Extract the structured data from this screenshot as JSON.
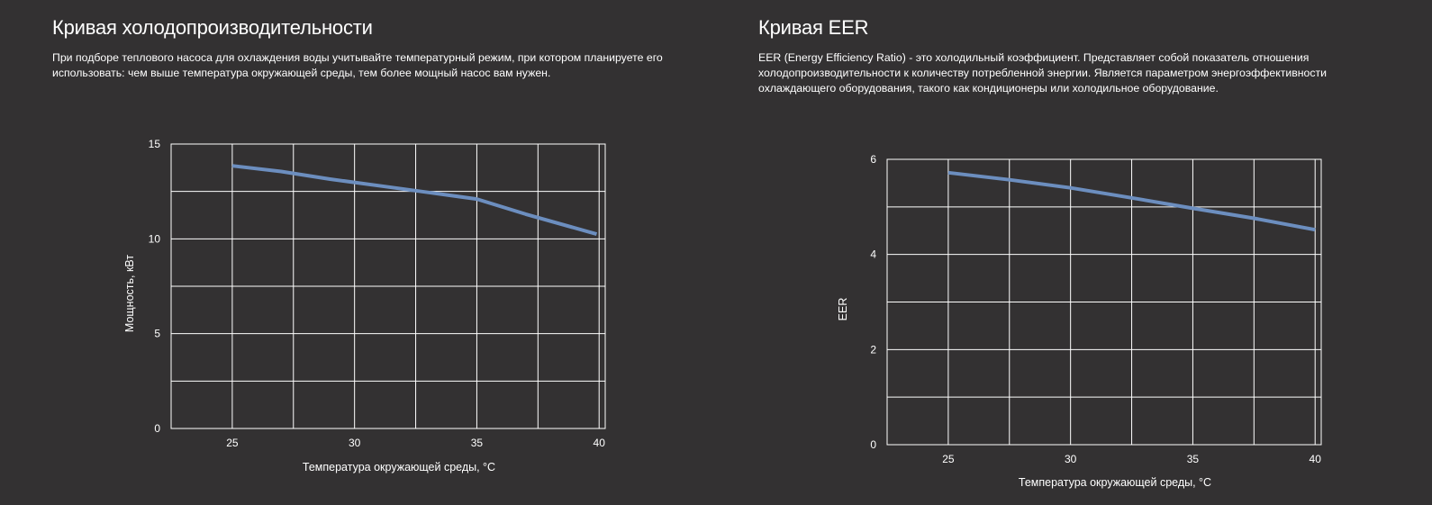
{
  "left": {
    "title": "Кривая холодопроизводительности",
    "description": "При подборе теплового насоса для охлаждения воды учитывайте температурный режим, при котором планируете его использовать: чем выше температура окружающей среды, тем более мощный насос вам нужен."
  },
  "right": {
    "title": "Кривая EER",
    "description": "EER (Energy Efficiency Ratio) - это холодильный коэффициент. Представляет собой показатель отношения холодопроизводительности к количеству потребленной энергии. Является параметром энергоэффективности охлаждающего оборудования, такого как кондиционеры или холодильное оборудование."
  },
  "colors": {
    "background": "#333132",
    "line": "#6c8ebf",
    "grid": "#ffffff",
    "text": "#ffffff"
  },
  "chart_data": [
    {
      "type": "line",
      "title": "",
      "xlabel": "Температура окружающей среды, °C",
      "ylabel": "Мощность, кВт",
      "xlim": [
        22.5,
        40.25
      ],
      "ylim": [
        0,
        15
      ],
      "x_ticks": [
        25,
        30,
        35,
        40
      ],
      "y_ticks": [
        0,
        5,
        10,
        15
      ],
      "grid": true,
      "series": [
        {
          "x": [
            25,
            27,
            29,
            31,
            33,
            35,
            37,
            39.9
          ],
          "y": [
            13.85,
            13.55,
            13.15,
            12.8,
            12.45,
            12.1,
            11.3,
            10.25
          ]
        }
      ]
    },
    {
      "type": "line",
      "title": "",
      "xlabel": "Температура окружающей среды, °C",
      "ylabel": "EER",
      "xlim": [
        22.5,
        40.25
      ],
      "ylim": [
        0,
        6
      ],
      "x_ticks": [
        25,
        30,
        35,
        40
      ],
      "y_ticks": [
        0,
        2,
        4,
        6
      ],
      "grid": true,
      "series": [
        {
          "x": [
            25,
            27.5,
            30,
            32.5,
            35,
            37.5,
            40
          ],
          "y": [
            5.72,
            5.57,
            5.4,
            5.19,
            4.97,
            4.76,
            4.52
          ]
        }
      ]
    }
  ]
}
